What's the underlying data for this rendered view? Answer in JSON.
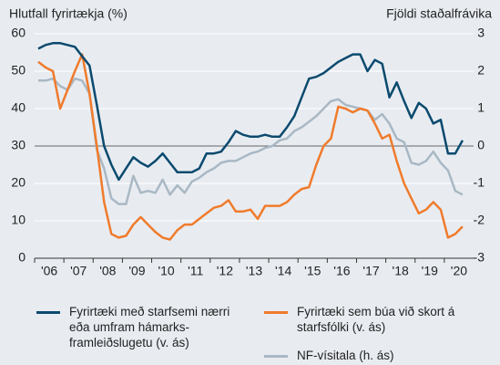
{
  "chart_data": {
    "type": "line",
    "y_label": "Hlutfall fyrirtækja (%)",
    "y2_label": "Fjöldi staðalfrávika",
    "x": [
      2006.125,
      2006.375,
      2006.625,
      2006.875,
      2007.125,
      2007.375,
      2007.625,
      2007.875,
      2008.125,
      2008.375,
      2008.625,
      2008.875,
      2009.125,
      2009.375,
      2009.625,
      2009.875,
      2010.125,
      2010.375,
      2010.625,
      2010.875,
      2011.125,
      2011.375,
      2011.625,
      2011.875,
      2012.125,
      2012.375,
      2012.625,
      2012.875,
      2013.125,
      2013.375,
      2013.625,
      2013.875,
      2014.125,
      2014.375,
      2014.625,
      2014.875,
      2015.125,
      2015.375,
      2015.625,
      2015.875,
      2016.125,
      2016.375,
      2016.625,
      2016.875,
      2017.125,
      2017.375,
      2017.625,
      2017.875,
      2018.125,
      2018.375,
      2018.625,
      2018.875,
      2019.125,
      2019.375,
      2019.625,
      2019.875,
      2020.125,
      2020.375,
      2020.625
    ],
    "series": [
      {
        "name": "Fyrirtæki með starfsemi nærri eða umfram hámarks-framleiðslugetu (v. ás)",
        "color": "#0b4a6e",
        "axis": "y",
        "values": [
          56,
          57,
          57.5,
          57.5,
          57,
          56.5,
          54,
          51.5,
          41,
          30,
          25,
          21,
          24,
          27,
          25.5,
          24.5,
          26,
          28,
          25.5,
          23,
          23,
          23,
          24,
          28,
          28,
          28.5,
          31,
          34,
          33,
          32.5,
          32.5,
          33,
          32.5,
          32.5,
          35,
          38,
          43,
          48,
          48.5,
          49.5,
          51,
          52.5,
          53.5,
          54.5,
          54.5,
          50,
          53,
          52,
          43,
          47,
          42,
          37.5,
          41.5,
          40,
          36,
          37,
          28,
          28,
          31.5
        ]
      },
      {
        "name": "Fyrirtæki sem búa við skort á starfsfólki (v. ás)",
        "color": "#f07b2c",
        "axis": "y",
        "values": [
          52.5,
          51,
          50,
          40,
          45,
          50,
          54.5,
          44,
          30,
          15,
          6.5,
          5.5,
          6,
          9,
          11,
          9,
          7,
          5.5,
          5,
          7.5,
          9,
          9,
          10.5,
          12,
          13.5,
          14,
          15.5,
          12.5,
          12.5,
          13,
          10.5,
          14,
          14,
          14,
          15,
          17,
          18.5,
          19,
          25,
          30,
          32,
          40.5,
          40,
          39,
          40,
          39.5,
          36,
          32,
          33,
          26,
          20,
          16,
          12,
          13,
          15,
          13,
          5.5,
          6.5,
          8.5
        ]
      },
      {
        "name": "NF-vísitala (h. ás)",
        "color": "#a9b8c4",
        "axis": "y2",
        "values": [
          1.75,
          1.75,
          1.8,
          1.6,
          1.5,
          1.8,
          1.75,
          1.4,
          -0.1,
          -0.6,
          -1.4,
          -1.55,
          -1.55,
          -0.8,
          -1.25,
          -1.2,
          -1.25,
          -0.9,
          -1.3,
          -1.05,
          -1.25,
          -0.95,
          -0.85,
          -0.7,
          -0.6,
          -0.45,
          -0.4,
          -0.4,
          -0.3,
          -0.2,
          -0.15,
          -0.05,
          0,
          0.15,
          0.2,
          0.4,
          0.5,
          0.65,
          0.8,
          1.0,
          1.2,
          1.25,
          1.1,
          1.05,
          1.0,
          0.95,
          0.7,
          0.85,
          0.6,
          0.2,
          0.1,
          -0.45,
          -0.5,
          -0.4,
          -0.15,
          -0.45,
          -0.65,
          -1.2,
          -1.3
        ]
      }
    ],
    "xlim": [
      2006,
      2021
    ],
    "xticks": [
      {
        "value": 2006.5,
        "label": "'06"
      },
      {
        "value": 2007.5,
        "label": "'07"
      },
      {
        "value": 2008.5,
        "label": "'08"
      },
      {
        "value": 2009.5,
        "label": "'09"
      },
      {
        "value": 2010.5,
        "label": "'10"
      },
      {
        "value": 2011.5,
        "label": "'11"
      },
      {
        "value": 2012.5,
        "label": "'12"
      },
      {
        "value": 2013.5,
        "label": "'13"
      },
      {
        "value": 2014.5,
        "label": "'14"
      },
      {
        "value": 2015.5,
        "label": "'15"
      },
      {
        "value": 2016.5,
        "label": "'16"
      },
      {
        "value": 2017.5,
        "label": "'17"
      },
      {
        "value": 2018.5,
        "label": "'18"
      },
      {
        "value": 2019.5,
        "label": "'19"
      },
      {
        "value": 2020.5,
        "label": "'20"
      }
    ],
    "ylim": [
      0,
      60
    ],
    "yticks": [
      0,
      10,
      20,
      30,
      40,
      50,
      60
    ],
    "y2lim": [
      -3,
      3
    ],
    "y2ticks": [
      -3,
      -2,
      -1,
      0,
      1,
      2,
      3
    ],
    "grid": true
  }
}
